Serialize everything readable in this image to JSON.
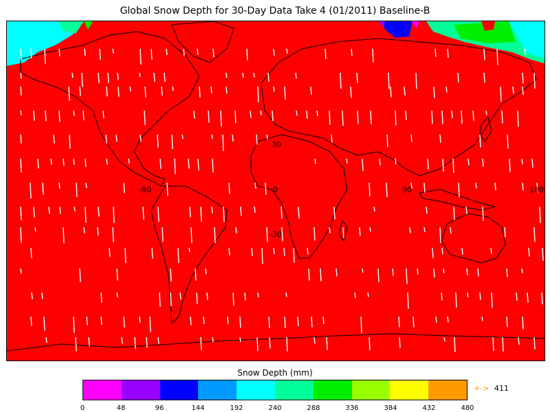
{
  "title": "Global Snow Depth for 30-Day Data Take 4 (01/2011) Baseline-B",
  "map": {
    "fill_color": "#ff0000",
    "grid_labels": {
      "latitudes": [
        "30",
        "0",
        "-30"
      ],
      "longitudes": [
        "-90",
        "0",
        "90",
        "180"
      ]
    },
    "polar_colors": {
      "cyan": "#00ffff",
      "teal": "#00ff99",
      "green": "#00ee00",
      "blue": "#0000ff",
      "purple": "#9900ff",
      "magenta": "#ff00ff"
    }
  },
  "colorbar": {
    "title": "Snow Depth (mm)",
    "colors": [
      "#ff00ff",
      "#9900ff",
      "#0000ff",
      "#0099ff",
      "#00ffff",
      "#00ff99",
      "#00ee00",
      "#99ff00",
      "#ffff00",
      "#ff9900"
    ],
    "ticks": [
      "0",
      "48",
      "96",
      "144",
      "192",
      "240",
      "288",
      "336",
      "384",
      "432",
      "480"
    ],
    "overflow_arrow": "+->",
    "overflow_value": "411"
  }
}
